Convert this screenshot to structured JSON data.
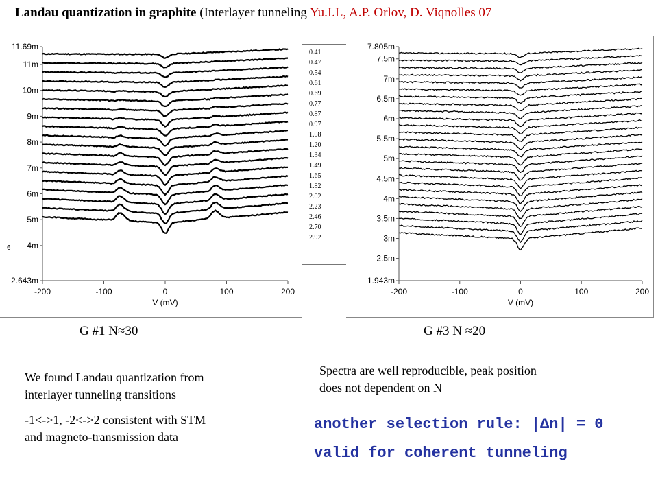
{
  "title": {
    "bold": "Landau quantization in graphite",
    "paren": " (Interlayer tunneling ",
    "authors": "Yu.I.L, A.P. Orlov, D. Viqnolles 07"
  },
  "legend_values": [
    "0.41",
    "0.47",
    "0.54",
    "0.61",
    "0.69",
    "0.77",
    "0.87",
    "0.97",
    "1.08",
    "1.20",
    "1.34",
    "1.49",
    "1.65",
    "1.82",
    "2.02",
    "2.23",
    "2.46",
    "2.70",
    "2.92"
  ],
  "stray_label": "6",
  "captions": {
    "g1": "G #1 N≈30",
    "g3": "G #3 N ≈20"
  },
  "text": {
    "left_line1": "We found Landau quantization from",
    "left_line2": "interlayer tunneling transitions",
    "left_line3": "-1<->1, -2<->2 consistent with STM",
    "left_line4": "and magneto-transmission data",
    "right_line1": "Spectra are well reproducible, peak position",
    "right_line2": "does not dependent on N",
    "rule_line1": "another selection rule: |Δn| = 0",
    "rule_line2": "valid for coherent tunneling"
  },
  "colors": {
    "author_red": "#c00000",
    "rule_blue": "#2432a0"
  },
  "chart_data": [
    {
      "type": "line",
      "xlabel": "V (mV)",
      "xlim": [
        -200,
        200
      ],
      "x_ticks": [
        "-200",
        "-100",
        "0",
        "100",
        "200"
      ],
      "ylim": [
        0.002643,
        0.01169
      ],
      "y_tick_values": [
        0.002643,
        0.004,
        0.005,
        0.006,
        0.007,
        0.008,
        0.009,
        0.01,
        0.011,
        0.01169
      ],
      "y_tick_labels": [
        "2.643m",
        "4m",
        "5m",
        "6m",
        "7m",
        "8m",
        "9m",
        "10m",
        "11m",
        "11.69m"
      ],
      "series_count": 19,
      "curve_base_left": [
        0.0115,
        0.01115,
        0.0108,
        0.01045,
        0.0101,
        0.00975,
        0.0094,
        0.00905,
        0.0087,
        0.00835,
        0.008,
        0.00765,
        0.0073,
        0.00695,
        0.0066,
        0.00625,
        0.0059,
        0.00555,
        0.0052
      ],
      "peak_positions_mV": [
        -75,
        80
      ],
      "dip_position_mV": 0
    },
    {
      "type": "line",
      "xlabel": "V (mV)",
      "xlim": [
        -200,
        200
      ],
      "x_ticks": [
        "-200",
        "-100",
        "0",
        "100",
        "200"
      ],
      "ylim": [
        0.001943,
        0.007805
      ],
      "y_tick_values": [
        0.001943,
        0.0025,
        0.003,
        0.0035,
        0.004,
        0.0045,
        0.005,
        0.0055,
        0.006,
        0.0065,
        0.007,
        0.0075,
        0.007805
      ],
      "y_tick_labels": [
        "1.943m",
        "2.5m",
        "3m",
        "3.5m",
        "4m",
        "4.5m",
        "5m",
        "5.5m",
        "6m",
        "6.5m",
        "7m",
        "7.5m",
        "7.805m"
      ],
      "series_count": 26,
      "curve_base_left": [
        0.0077,
        0.00752,
        0.00734,
        0.00716,
        0.00698,
        0.0068,
        0.00662,
        0.00644,
        0.00626,
        0.00608,
        0.0059,
        0.00572,
        0.00554,
        0.00536,
        0.00518,
        0.005,
        0.00482,
        0.00464,
        0.00446,
        0.00428,
        0.0041,
        0.00392,
        0.00374,
        0.00356,
        0.00338,
        0.0032
      ],
      "dip_position_mV": 0
    }
  ]
}
